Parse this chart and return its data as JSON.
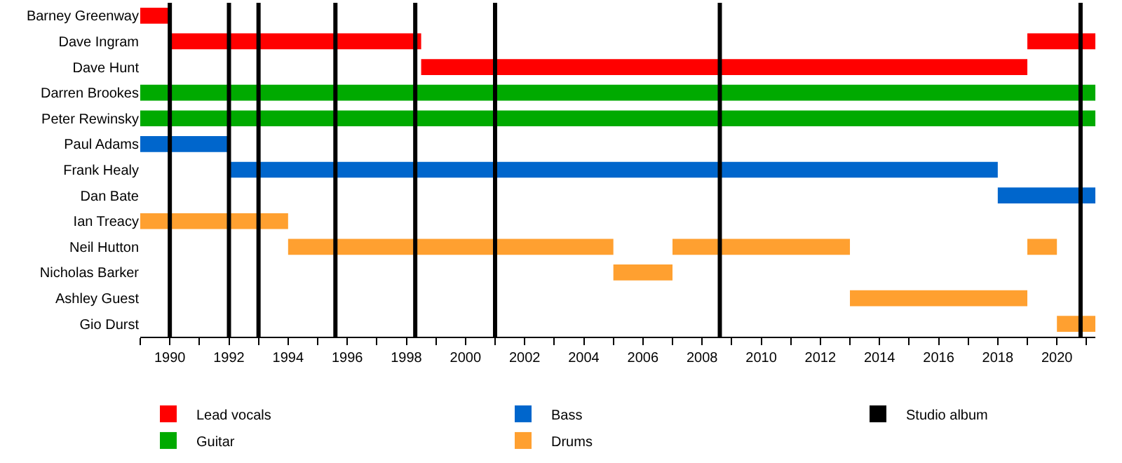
{
  "chart_data": {
    "type": "bar",
    "orientation": "horizontal",
    "categories": [
      "Barney Greenway",
      "Dave Ingram",
      "Dave Hunt",
      "Darren Brookes",
      "Peter Rewinsky",
      "Paul Adams",
      "Frank Healy",
      "Dan Bate",
      "Ian Treacy",
      "Neil Hutton",
      "Nicholas Barker",
      "Ashley Guest",
      "Gio Durst"
    ],
    "series": [
      {
        "name": "Lead vocals",
        "color": "#ff0000",
        "base": [
          1989,
          1990,
          1998.5,
          null,
          null,
          null,
          null,
          null,
          null,
          null,
          null,
          null,
          null
        ],
        "values": [
          1,
          8.5,
          20.5,
          null,
          null,
          null,
          null,
          null,
          null,
          null,
          null,
          null,
          null
        ]
      },
      {
        "name": "Guitar",
        "color": "#00aa00",
        "base": [
          null,
          null,
          null,
          1989,
          1989,
          null,
          null,
          null,
          null,
          null,
          null,
          null,
          null
        ],
        "values": [
          null,
          null,
          null,
          32.3,
          32.3,
          null,
          null,
          null,
          null,
          null,
          null,
          null,
          null
        ]
      },
      {
        "name": "Bass",
        "color": "#0066cc",
        "base": [
          null,
          null,
          null,
          null,
          null,
          1989,
          1992,
          2018,
          null,
          null,
          null,
          null,
          null
        ],
        "values": [
          null,
          null,
          null,
          null,
          null,
          3,
          26,
          3.3,
          null,
          null,
          null,
          null,
          null
        ]
      },
      {
        "name": "Drums",
        "color": "#ffa030",
        "base": [
          null,
          null,
          null,
          null,
          null,
          null,
          null,
          null,
          1989,
          1994,
          2005,
          2013,
          2020
        ],
        "values": [
          null,
          null,
          null,
          null,
          null,
          null,
          null,
          null,
          5,
          11,
          2,
          6,
          1.3
        ]
      },
      {
        "color": "#ff0000",
        "base": [
          null,
          2019,
          null,
          null,
          null,
          null,
          null,
          null,
          null,
          null,
          null,
          null,
          null
        ],
        "values": [
          null,
          2.3,
          null,
          null,
          null,
          null,
          null,
          null,
          null,
          null,
          null,
          null,
          null
        ]
      },
      {
        "color": "#ffa030",
        "base": [
          null,
          null,
          null,
          null,
          null,
          null,
          null,
          null,
          null,
          2007,
          null,
          null,
          null
        ],
        "values": [
          null,
          null,
          null,
          null,
          null,
          null,
          null,
          null,
          null,
          6,
          null,
          null,
          null
        ]
      },
      {
        "color": "#ffa030",
        "base": [
          null,
          null,
          null,
          null,
          null,
          null,
          null,
          null,
          null,
          2019,
          null,
          null,
          null
        ],
        "values": [
          null,
          null,
          null,
          null,
          null,
          null,
          null,
          null,
          null,
          1,
          null,
          null,
          null
        ]
      }
    ],
    "ref_lines": [
      {
        "axis": "x",
        "value": 1990,
        "label": "Studio album",
        "color": "#000000"
      },
      {
        "axis": "x",
        "value": 1992,
        "color": "#000000"
      },
      {
        "axis": "x",
        "value": 1993,
        "color": "#000000"
      },
      {
        "axis": "x",
        "value": 1995.6,
        "color": "#000000"
      },
      {
        "axis": "x",
        "value": 1998.3,
        "color": "#000000"
      },
      {
        "axis": "x",
        "value": 2001,
        "color": "#000000"
      },
      {
        "axis": "x",
        "value": 2008.6,
        "color": "#000000"
      },
      {
        "axis": "x",
        "value": 2020.8,
        "color": "#000000"
      }
    ],
    "xlim": [
      1989,
      2021.3
    ],
    "xticks": [
      {
        "value": 1989,
        "label": null
      },
      1990,
      {
        "value": 1991,
        "label": null
      },
      1992,
      {
        "value": 1993,
        "label": null
      },
      1994,
      {
        "value": 1995,
        "label": null
      },
      1996,
      {
        "value": 1997,
        "label": null
      },
      1998,
      {
        "value": 1999,
        "label": null
      },
      2000,
      {
        "value": 2001,
        "label": null
      },
      2002,
      {
        "value": 2003,
        "label": null
      },
      2004,
      {
        "value": 2005,
        "label": null
      },
      2006,
      {
        "value": 2007,
        "label": null
      },
      2008,
      {
        "value": 2009,
        "label": null
      },
      2010,
      {
        "value": 2011,
        "label": null
      },
      2012,
      {
        "value": 2013,
        "label": null
      },
      2014,
      {
        "value": 2015,
        "label": null
      },
      2016,
      {
        "value": 2017,
        "label": null
      },
      2018,
      {
        "value": 2019,
        "label": null
      },
      2020,
      {
        "value": 2021,
        "label": null
      }
    ],
    "legend": "bottom"
  }
}
